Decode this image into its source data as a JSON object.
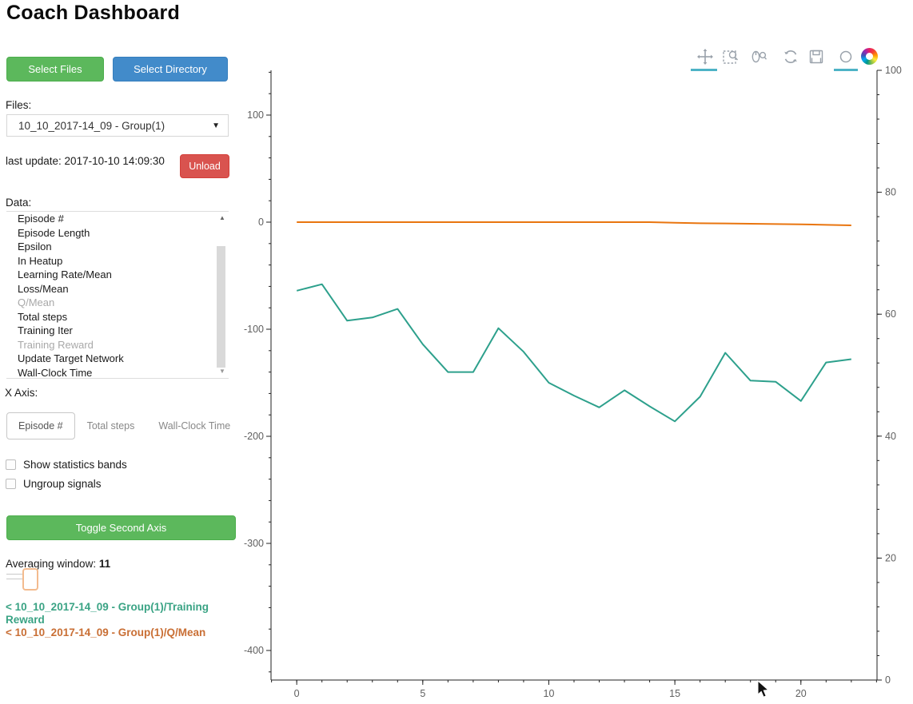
{
  "title": "Coach Dashboard",
  "sidebar": {
    "select_files_label": "Select Files",
    "select_directory_label": "Select Directory",
    "files_label": "Files:",
    "file_selected": "10_10_2017-14_09 - Group(1)",
    "last_update": "last update: 2017-10-10 14:09:30",
    "unload_label": "Unload",
    "data_label": "Data:",
    "data_items": [
      {
        "label": "Episode #",
        "dimmed": false
      },
      {
        "label": "Episode Length",
        "dimmed": false
      },
      {
        "label": "Epsilon",
        "dimmed": false
      },
      {
        "label": "In Heatup",
        "dimmed": false
      },
      {
        "label": "Learning Rate/Mean",
        "dimmed": false
      },
      {
        "label": "Loss/Mean",
        "dimmed": false
      },
      {
        "label": "Q/Mean",
        "dimmed": true
      },
      {
        "label": "Total steps",
        "dimmed": false
      },
      {
        "label": "Training Iter",
        "dimmed": false
      },
      {
        "label": "Training Reward",
        "dimmed": true
      },
      {
        "label": "Update Target Network",
        "dimmed": false
      },
      {
        "label": "Wall-Clock Time",
        "dimmed": false
      }
    ],
    "x_axis_label": "X Axis:",
    "x_axis_tabs": [
      {
        "label": "Episode #",
        "active": true
      },
      {
        "label": "Total steps",
        "active": false
      },
      {
        "label": "Wall-Clock Time",
        "active": false
      }
    ],
    "checkboxes": [
      {
        "label": "Show statistics bands",
        "checked": false
      },
      {
        "label": "Ungroup signals",
        "checked": false
      }
    ],
    "toggle_second_axis_label": "Toggle Second Axis",
    "averaging_label": "Averaging window:",
    "averaging_value": "11",
    "legend": [
      {
        "text": "< 10_10_2017-14_09 - Group(1)/Training Reward",
        "color": "#3aa384"
      },
      {
        "text": "< 10_10_2017-14_09 - Group(1)/Q/Mean",
        "color": "#c96f35"
      }
    ]
  },
  "toolbar": {
    "tools": [
      "pan",
      "box-zoom",
      "wheel-zoom",
      "reset",
      "save",
      "hover",
      "bokeh-logo"
    ],
    "active_tools": [
      "pan",
      "hover"
    ],
    "active_underline_color": "#4db3c6"
  },
  "chart_data": {
    "type": "line",
    "title": "",
    "xlabel": "",
    "ylabel": "",
    "grid": false,
    "legend_position": "sidebar",
    "x": [
      0,
      1,
      2,
      3,
      4,
      5,
      6,
      7,
      8,
      9,
      10,
      11,
      12,
      13,
      14,
      15,
      16,
      17,
      18,
      19,
      20,
      21,
      22
    ],
    "series": [
      {
        "name": "10_10_2017-14_09 - Group(1)/Training Reward",
        "color": "#2da08c",
        "axis": "left",
        "values": [
          -64,
          -58,
          -92,
          -89,
          -81,
          -114,
          -140,
          -140,
          -99,
          -121,
          -150,
          -162,
          -173,
          -157,
          -172,
          -186,
          -163,
          -122,
          -148,
          -149,
          -167,
          -131,
          -128
        ]
      },
      {
        "name": "10_10_2017-14_09 - Group(1)/Q/Mean",
        "color": "#e9750f",
        "axis": "left",
        "values": [
          0,
          0,
          0,
          0,
          0,
          0,
          0,
          0,
          0,
          0,
          0,
          0,
          0,
          0,
          0,
          -0.5,
          -1,
          -1.2,
          -1.5,
          -1.8,
          -2,
          -2.5,
          -3
        ]
      }
    ],
    "xlim": [
      -1.02,
      23.02
    ],
    "left_ylim": [
      -427.6,
      141.8
    ],
    "right_ylim": [
      0,
      100
    ],
    "x_ticks": [
      0,
      5,
      10,
      15,
      20
    ],
    "left_y_ticks": [
      100,
      0,
      -100,
      -200,
      -300,
      -400
    ],
    "right_y_ticks": [
      100,
      80,
      60,
      40,
      20,
      0
    ],
    "minor_tick_steps": {
      "x": 1,
      "left": 20,
      "right": 4
    }
  }
}
